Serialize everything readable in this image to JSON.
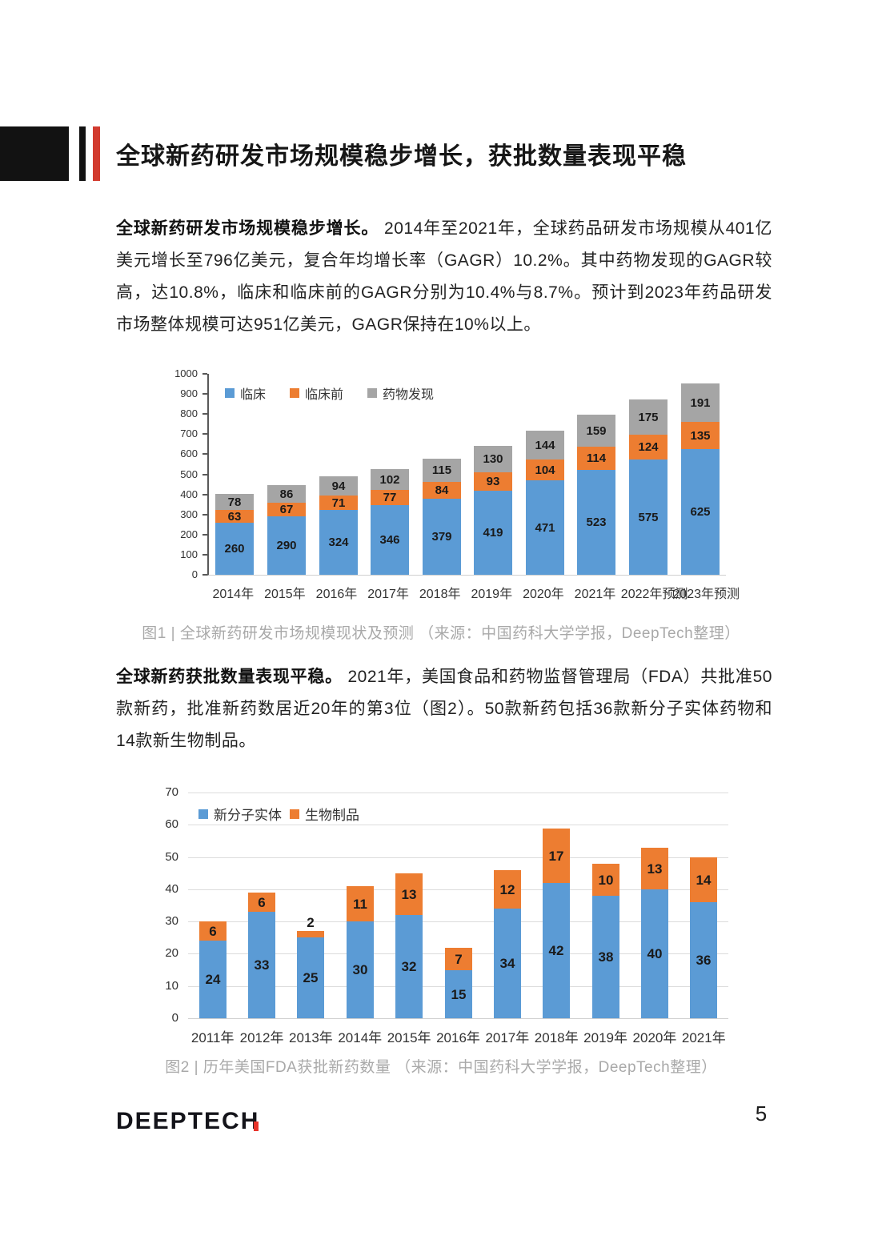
{
  "page": {
    "title": "全球新药研发市场规模稳步增长，获批数量表现平稳",
    "footer": {
      "logo_text": "DEEPTECH",
      "page_number": "5"
    }
  },
  "paragraphs": {
    "p1_lead": "全球新药研发市场规模稳步增长。",
    "p1_body": " 2014年至2021年，全球药品研发市场规模从401亿美元增长至796亿美元，复合年均增长率（GAGR）10.2%。其中药物发现的GAGR较高，达10.8%，临床和临床前的GAGR分别为10.4%与8.7%。预计到2023年药品研发市场整体规模可达951亿美元，GAGR保持在10%以上。",
    "p2_lead": "全球新药获批数量表现平稳。",
    "p2_body": " 2021年，美国食品和药物监督管理局（FDA）共批准50款新药，批准新药数居近20年的第3位（图2）。50款新药包括36款新分子实体药物和14款新生物制品。"
  },
  "figures": {
    "fig1_caption": "图1 | 全球新药研发市场规模现状及预测 （来源：中国药科大学学报，DeepTech整理）",
    "fig2_caption": "图2 | 历年美国FDA获批新药数量 （来源：中国药科大学学报，DeepTech整理）"
  },
  "colors": {
    "accent_red": "#d23b2f",
    "header_black": "#121212",
    "series_blue": "#5B9BD5",
    "series_orange": "#ED7D31",
    "series_gray": "#A5A5A5",
    "caption_gray": "#a9a9a9",
    "gridline": "#dcdcdc",
    "axis": "#595959"
  },
  "chart_data": [
    {
      "type": "bar",
      "stacked": true,
      "title": "",
      "categories": [
        "2014年",
        "2015年",
        "2016年",
        "2017年",
        "2018年",
        "2019年",
        "2020年",
        "2021年",
        "2022年预测",
        "2023年预测"
      ],
      "series": [
        {
          "name": "临床",
          "color": "#5B9BD5",
          "values": [
            260,
            290,
            324,
            346,
            379,
            419,
            471,
            523,
            575,
            625
          ]
        },
        {
          "name": "临床前",
          "color": "#ED7D31",
          "values": [
            63,
            67,
            71,
            77,
            84,
            93,
            104,
            114,
            124,
            135
          ]
        },
        {
          "name": "药物发现",
          "color": "#A5A5A5",
          "values": [
            78,
            86,
            94,
            102,
            115,
            130,
            144,
            159,
            175,
            191
          ]
        }
      ],
      "ylim": [
        0,
        1000
      ],
      "ytick_step": 100,
      "legend_position": "top-left-inside",
      "grid": false,
      "axis_line": true,
      "value_labels": "inside"
    },
    {
      "type": "bar",
      "stacked": true,
      "title": "",
      "categories": [
        "2011年",
        "2012年",
        "2013年",
        "2014年",
        "2015年",
        "2016年",
        "2017年",
        "2018年",
        "2019年",
        "2020年",
        "2021年"
      ],
      "series": [
        {
          "name": "新分子实体",
          "color": "#5B9BD5",
          "values": [
            24,
            33,
            25,
            30,
            32,
            15,
            34,
            42,
            38,
            40,
            36
          ]
        },
        {
          "name": "生物制品",
          "color": "#ED7D31",
          "values": [
            6,
            6,
            2,
            11,
            13,
            7,
            12,
            17,
            10,
            13,
            14
          ]
        }
      ],
      "ylim": [
        0,
        70
      ],
      "ytick_step": 10,
      "legend_position": "top-left-inside",
      "grid": true,
      "axis_line": false,
      "value_labels": "inside"
    }
  ]
}
